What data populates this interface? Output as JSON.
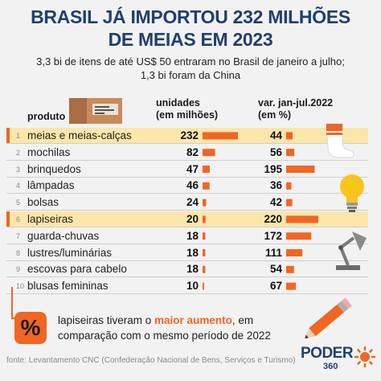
{
  "header": {
    "title_line1": "BRASIL JÁ IMPORTOU 232 MILHÕES",
    "title_line2": "DE MEIAS EM 2023",
    "subtitle_line1": "3,3 bi de itens de até US$ 50 entraram no Brasil de janeiro a julho;",
    "subtitle_line2": "1,3 bi foram da China"
  },
  "columns": {
    "product": "produto",
    "units_line1": "unidades",
    "units_line2": "(em milhões)",
    "change_line1": "var. jan-jul.2022",
    "change_line2": "(em %)"
  },
  "chart_data": {
    "type": "bar",
    "categories": [
      "meias e meias-calças",
      "mochilas",
      "brinquedos",
      "lâmpadas",
      "bolsas",
      "lapiseiras",
      "guarda-chuvas",
      "lustres/luminárias",
      "escovas para cabelo",
      "blusas femininas"
    ],
    "ranks": [
      "1",
      "2",
      "3",
      "4",
      "5",
      "6",
      "7",
      "8",
      "9",
      "10"
    ],
    "highlighted": [
      0,
      5
    ],
    "series": [
      {
        "name": "unidades (em milhões)",
        "values": [
          232,
          82,
          47,
          46,
          24,
          20,
          18,
          18,
          18,
          10
        ]
      },
      {
        "name": "var. jan-jul.2022 (em %)",
        "values": [
          44,
          56,
          195,
          36,
          42,
          220,
          172,
          111,
          54,
          67
        ]
      }
    ],
    "bar_color": "#f26522",
    "highlight_color": "#fde6a9"
  },
  "note": {
    "badge": "%",
    "line1_pre": "lapiseiras tiveram o ",
    "line1_em": "maior aumento",
    "line1_post": ", em",
    "line2": "comparação com o mesmo período de 2022"
  },
  "source": "fonte: Levantamento CNC (Confederação Nacional de Bens, Serviços e Turismo)",
  "logo": {
    "name": "PODER",
    "number": "360"
  },
  "icons": [
    "box-icon",
    "sock-icon",
    "lightbulb-icon",
    "desk-lamp-icon",
    "pencil-icon",
    "sun-logo-icon"
  ],
  "colors": {
    "title": "#1f3f72",
    "accent": "#f26522",
    "highlight": "#fde6a9"
  }
}
